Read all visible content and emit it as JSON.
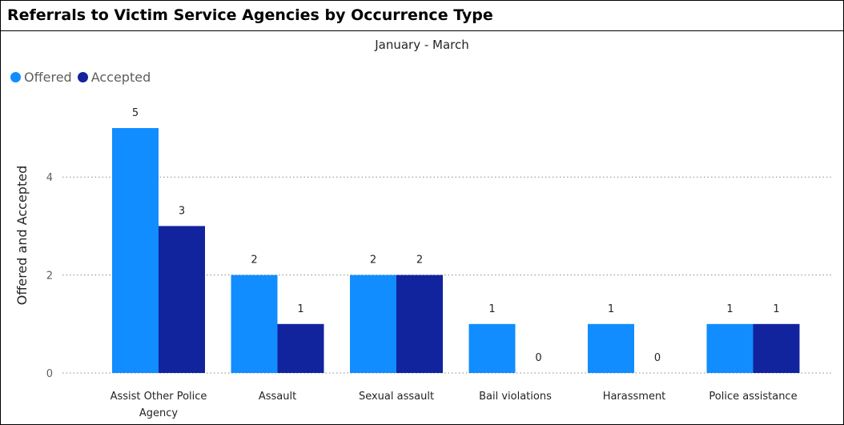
{
  "title": "Referrals to Victim Service Agencies by Occurrence Type",
  "colors": {
    "offered": "#118dff",
    "accepted": "#12239e"
  },
  "chart_data": {
    "type": "bar",
    "title": "Referrals to Victim Service Agencies by Occurrence Type",
    "subtitle": "January - March",
    "xlabel": "",
    "ylabel": "Offered and Accepted",
    "ylim": [
      0,
      5
    ],
    "yticks": [
      0,
      2,
      4
    ],
    "grid": true,
    "legend_position": "top-left",
    "categories": [
      [
        "Assist Other Police",
        "Agency"
      ],
      [
        "Assault"
      ],
      [
        "Sexual assault"
      ],
      [
        "Bail violations"
      ],
      [
        "Harassment"
      ],
      [
        "Police assistance"
      ]
    ],
    "series": [
      {
        "name": "Offered",
        "color": "#118dff",
        "values": [
          5,
          2,
          2,
          1,
          1,
          1
        ]
      },
      {
        "name": "Accepted",
        "color": "#12239e",
        "values": [
          3,
          1,
          2,
          0,
          0,
          1
        ]
      }
    ]
  }
}
